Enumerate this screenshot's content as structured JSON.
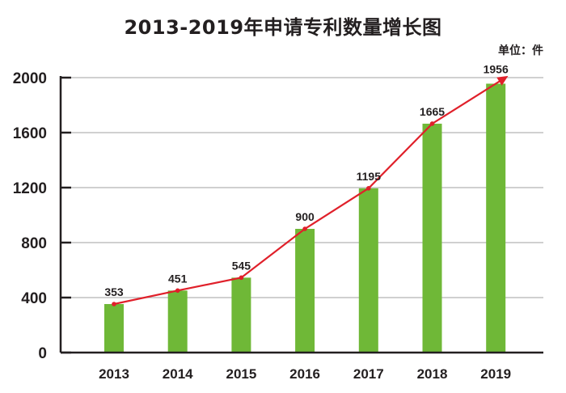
{
  "chart_data": {
    "type": "bar",
    "title": "2013-2019年申请专利数量增长图",
    "unit_label": "单位：件",
    "categories": [
      "2013",
      "2014",
      "2015",
      "2016",
      "2017",
      "2018",
      "2019"
    ],
    "values": [
      353,
      451,
      545,
      900,
      1195,
      1665,
      1956
    ],
    "data_labels": [
      "353",
      "451",
      "545",
      "900",
      "1195",
      "1665",
      "1956"
    ],
    "overlay": "line with arrow through bar tops",
    "ylim": [
      0,
      2000
    ],
    "yticks": [
      "0",
      "400",
      "800",
      "1200",
      "1600",
      "2000"
    ],
    "grid": true,
    "colors": {
      "bar": "#6fb837",
      "line": "#e0202a",
      "grid": "#b5b5b5",
      "axis": "#231f20"
    }
  }
}
